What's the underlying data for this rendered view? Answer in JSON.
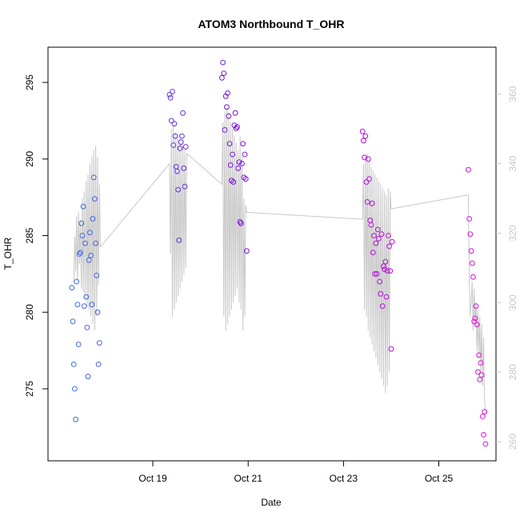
{
  "chart_data": {
    "type": "scatter",
    "title": "ATOM3 Northbound T_OHR",
    "xlabel": "Date",
    "ylabel": "T_OHR",
    "x_tick_labels": [
      "Oct 19",
      "Oct 21",
      "Oct 23",
      "Oct 25"
    ],
    "x_tick_values": [
      19,
      21,
      23,
      25
    ],
    "xlim": [
      16.8,
      26.2
    ],
    "ylim": [
      270.3,
      297.3
    ],
    "y_ticks": [
      275,
      280,
      285,
      290,
      295
    ],
    "y2_ticks": [
      260,
      280,
      300,
      320,
      340,
      360
    ],
    "y2lim": [
      254.5,
      373.5
    ],
    "grid": false,
    "colors": {
      "scatter_start": "#3a6fe0",
      "scatter_mid": "#7a10e0",
      "scatter_end": "#e010d8",
      "secondary_line": "#c8c8c8",
      "right_axis": "#c8c8c8"
    },
    "series": [
      {
        "axis": "left",
        "points": [
          [
            17.3,
            281.6
          ],
          [
            17.32,
            279.4
          ],
          [
            17.34,
            276.6
          ],
          [
            17.36,
            275.0
          ],
          [
            17.38,
            273.0
          ],
          [
            17.4,
            282.0
          ],
          [
            17.42,
            280.5
          ],
          [
            17.44,
            277.9
          ],
          [
            17.46,
            283.8
          ],
          [
            17.48,
            283.9
          ],
          [
            17.5,
            285.8
          ],
          [
            17.52,
            285.0
          ],
          [
            17.54,
            286.9
          ],
          [
            17.56,
            280.4
          ],
          [
            17.58,
            284.5
          ],
          [
            17.6,
            281.0
          ],
          [
            17.62,
            279.0
          ],
          [
            17.64,
            275.8
          ],
          [
            17.66,
            283.4
          ],
          [
            17.68,
            285.2
          ],
          [
            17.7,
            283.7
          ],
          [
            17.72,
            280.5
          ],
          [
            17.74,
            286.1
          ],
          [
            17.76,
            288.8
          ],
          [
            17.78,
            287.4
          ],
          [
            17.8,
            284.5
          ],
          [
            17.82,
            282.4
          ],
          [
            17.84,
            280.0
          ],
          [
            17.86,
            276.6
          ],
          [
            17.88,
            278.0
          ],
          [
            19.35,
            294.2
          ],
          [
            19.37,
            294.0
          ],
          [
            19.39,
            292.5
          ],
          [
            19.41,
            294.4
          ],
          [
            19.43,
            290.9
          ],
          [
            19.45,
            292.3
          ],
          [
            19.47,
            291.5
          ],
          [
            19.49,
            289.5
          ],
          [
            19.51,
            289.2
          ],
          [
            19.53,
            288.0
          ],
          [
            19.55,
            284.7
          ],
          [
            19.57,
            290.7
          ],
          [
            19.59,
            291.1
          ],
          [
            19.61,
            291.5
          ],
          [
            19.63,
            293.0
          ],
          [
            19.65,
            289.4
          ],
          [
            19.67,
            288.2
          ],
          [
            19.69,
            290.8
          ],
          [
            20.45,
            295.3
          ],
          [
            20.47,
            296.3
          ],
          [
            20.49,
            295.6
          ],
          [
            20.51,
            291.9
          ],
          [
            20.53,
            294.1
          ],
          [
            20.55,
            293.4
          ],
          [
            20.57,
            294.3
          ],
          [
            20.59,
            292.8
          ],
          [
            20.61,
            291.0
          ],
          [
            20.63,
            289.6
          ],
          [
            20.65,
            288.6
          ],
          [
            20.67,
            290.3
          ],
          [
            20.69,
            288.5
          ],
          [
            20.71,
            292.2
          ],
          [
            20.73,
            293.0
          ],
          [
            20.75,
            292.0
          ],
          [
            20.77,
            292.1
          ],
          [
            20.79,
            289.4
          ],
          [
            20.81,
            289.8
          ],
          [
            20.83,
            285.9
          ],
          [
            20.85,
            285.8
          ],
          [
            20.87,
            289.7
          ],
          [
            20.89,
            291.0
          ],
          [
            20.91,
            288.8
          ],
          [
            20.93,
            290.3
          ],
          [
            20.95,
            288.7
          ],
          [
            20.97,
            284.0
          ],
          [
            23.4,
            291.8
          ],
          [
            23.42,
            291.2
          ],
          [
            23.44,
            290.1
          ],
          [
            23.46,
            291.5
          ],
          [
            23.48,
            288.5
          ],
          [
            23.5,
            287.2
          ],
          [
            23.52,
            290.0
          ],
          [
            23.54,
            288.7
          ],
          [
            23.56,
            286.0
          ],
          [
            23.58,
            285.7
          ],
          [
            23.6,
            287.1
          ],
          [
            23.62,
            283.9
          ],
          [
            23.64,
            285.0
          ],
          [
            23.66,
            282.5
          ],
          [
            23.68,
            284.5
          ],
          [
            23.7,
            282.5
          ],
          [
            23.72,
            285.4
          ],
          [
            23.74,
            284.8
          ],
          [
            23.76,
            282.0
          ],
          [
            23.78,
            281.2
          ],
          [
            23.8,
            285.1
          ],
          [
            23.82,
            280.4
          ],
          [
            23.84,
            283.0
          ],
          [
            23.86,
            282.8
          ],
          [
            23.88,
            283.3
          ],
          [
            23.9,
            281.0
          ],
          [
            23.92,
            282.7
          ],
          [
            23.94,
            285.0
          ],
          [
            23.96,
            284.3
          ],
          [
            23.98,
            282.7
          ],
          [
            24.0,
            277.6
          ],
          [
            24.02,
            284.6
          ],
          [
            25.62,
            289.3
          ],
          [
            25.64,
            286.1
          ],
          [
            25.66,
            285.1
          ],
          [
            25.68,
            284.0
          ],
          [
            25.7,
            283.2
          ],
          [
            25.72,
            282.3
          ],
          [
            25.74,
            279.4
          ],
          [
            25.76,
            279.6
          ],
          [
            25.78,
            280.4
          ],
          [
            25.8,
            279.2
          ],
          [
            25.82,
            276.1
          ],
          [
            25.84,
            277.2
          ],
          [
            25.86,
            275.6
          ],
          [
            25.88,
            276.7
          ],
          [
            25.9,
            275.9
          ],
          [
            25.92,
            273.2
          ],
          [
            25.94,
            272.0
          ],
          [
            25.96,
            273.5
          ],
          [
            25.98,
            271.4
          ]
        ]
      },
      {
        "axis": "right",
        "lines_x": [
          [
            17.34,
            17.36,
            17.38,
            17.4,
            17.42,
            17.44,
            17.46,
            17.48,
            17.5,
            17.52,
            17.54,
            17.56,
            17.58,
            17.6,
            17.62,
            17.64,
            17.66,
            17.68,
            17.7,
            17.72,
            17.74,
            17.76,
            17.78,
            17.8,
            17.82,
            17.84,
            17.86,
            17.88,
            17.9
          ],
          [
            17.9,
            19.35
          ],
          [
            19.35,
            19.37,
            19.39,
            19.41,
            19.43,
            19.45,
            19.47,
            19.49,
            19.51,
            19.53,
            19.55,
            19.57,
            19.59,
            19.61,
            19.63,
            19.65,
            19.67,
            19.69,
            19.71
          ],
          [
            19.71,
            20.45
          ],
          [
            20.45,
            20.47,
            20.49,
            20.51,
            20.53,
            20.55,
            20.57,
            20.59,
            20.61,
            20.63,
            20.65,
            20.67,
            20.69,
            20.71,
            20.73,
            20.75,
            20.77,
            20.79,
            20.81,
            20.83,
            20.85,
            20.87,
            20.89,
            20.91,
            20.93,
            20.95,
            20.97
          ],
          [
            20.97,
            23.4
          ],
          [
            23.4,
            23.42,
            23.44,
            23.46,
            23.48,
            23.5,
            23.52,
            23.54,
            23.56,
            23.58,
            23.6,
            23.62,
            23.64,
            23.66,
            23.68,
            23.7,
            23.72,
            23.74,
            23.76,
            23.78,
            23.8,
            23.82,
            23.84,
            23.86,
            23.88,
            23.9,
            23.92,
            23.94,
            23.96,
            23.98,
            24.0
          ],
          [
            24.0,
            25.62
          ],
          [
            25.62,
            25.64,
            25.66,
            25.68,
            25.7,
            25.72,
            25.74,
            25.76,
            25.78,
            25.8,
            25.82,
            25.84,
            25.86,
            25.88,
            25.9,
            25.92,
            25.94,
            25.96,
            25.98
          ]
        ],
        "lines_y": [
          [
            306,
            319,
            309,
            325,
            306,
            326,
            311,
            324,
            304,
            330,
            303,
            332,
            301,
            335,
            299,
            337,
            298,
            340,
            296,
            342,
            294,
            344,
            292,
            345,
            296,
            342,
            305,
            334,
            316
          ],
          [
            316,
            340
          ],
          [
            340,
            314,
            350,
            296,
            351,
            298,
            349,
            300,
            348,
            302,
            347,
            304,
            346,
            306,
            345,
            308,
            344,
            310,
            343
          ],
          [
            343,
            334
          ],
          [
            334,
            352,
            296,
            355,
            292,
            356,
            294,
            355,
            296,
            352,
            298,
            350,
            300,
            348,
            302,
            346,
            304,
            344,
            300,
            348,
            298,
            342,
            292,
            330,
            296,
            328,
            326
          ],
          [
            326,
            324
          ],
          [
            324,
            340,
            298,
            342,
            296,
            343,
            292,
            341,
            290,
            339,
            288,
            338,
            286,
            337,
            284,
            336,
            282,
            335,
            280,
            334,
            278,
            333,
            276,
            332,
            274,
            331,
            276,
            333,
            280,
            332,
            327
          ],
          [
            327,
            331
          ],
          [
            331,
            306,
            296,
            300,
            306,
            292,
            304,
            294,
            300,
            286,
            298,
            284,
            296,
            280,
            294,
            276,
            290,
            272,
            268
          ]
        ]
      }
    ]
  }
}
